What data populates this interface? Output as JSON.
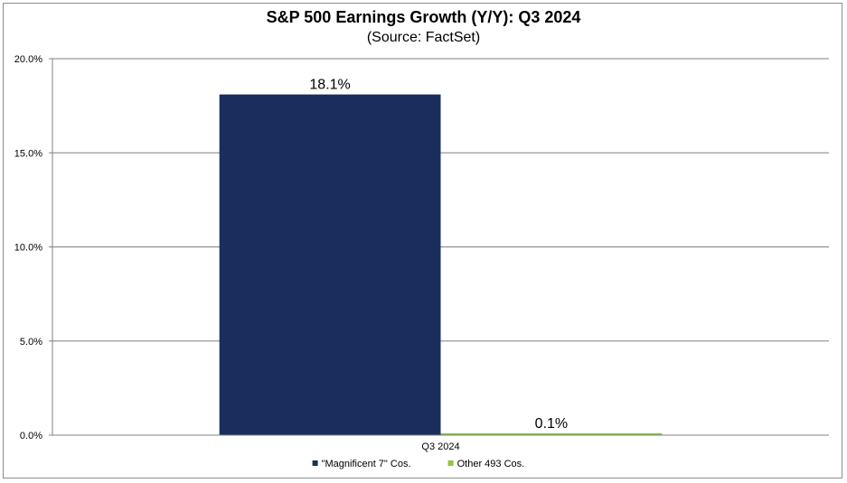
{
  "chart_data": {
    "type": "bar",
    "title": "S&P 500 Earnings Growth (Y/Y): Q3 2024",
    "subtitle": "(Source: FactSet)",
    "categories": [
      "Q3 2024"
    ],
    "series": [
      {
        "name": "\"Magnificent 7\" Cos.",
        "values": [
          18.1
        ],
        "color": "#1a2e5e",
        "data_labels": [
          "18.1%"
        ]
      },
      {
        "name": "Other 493 Cos.",
        "values": [
          0.1
        ],
        "color": "#8dc63f",
        "data_labels": [
          "0.1%"
        ]
      }
    ],
    "ylim": [
      0,
      20
    ],
    "y_ticks": [
      {
        "value": 0,
        "label": "0.0%"
      },
      {
        "value": 5,
        "label": "5.0%"
      },
      {
        "value": 10,
        "label": "10.0%"
      },
      {
        "value": 15,
        "label": "15.0%"
      },
      {
        "value": 20,
        "label": "20.0%"
      }
    ],
    "grid": true,
    "legend": "bottom"
  }
}
